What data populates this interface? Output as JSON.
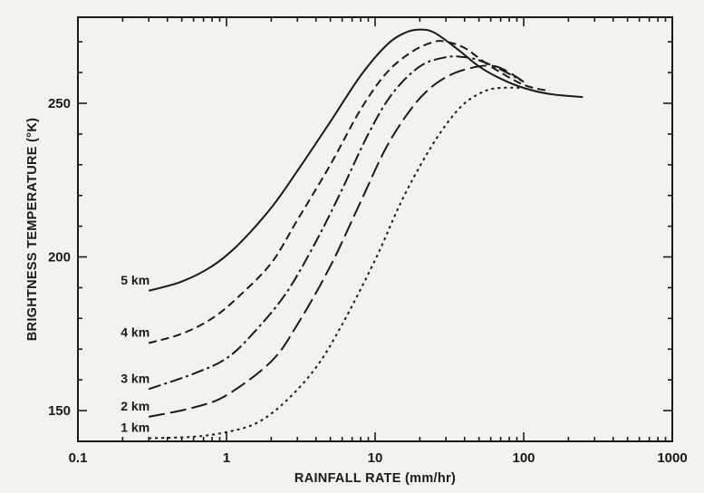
{
  "chart_data": {
    "type": "line",
    "xlabel": "RAINFALL RATE (mm/hr)",
    "ylabel": "BRIGHTNESS TEMPERATURE (°K)",
    "x_scale": "log",
    "xlim": [
      0.1,
      1000
    ],
    "ylim": [
      140,
      278
    ],
    "x_ticks": [
      0.1,
      1,
      10,
      100,
      1000
    ],
    "x_tick_labels": [
      "0.1",
      "1",
      "10",
      "100",
      "1000"
    ],
    "y_ticks": [
      150,
      200,
      250
    ],
    "y_tick_labels": [
      "150",
      "200",
      "250"
    ],
    "grid": false,
    "series": [
      {
        "name": "5 km",
        "dash": "solid",
        "x": [
          0.3,
          0.5,
          0.8,
          1.2,
          2,
          3,
          5,
          8,
          12,
          16,
          20,
          25,
          35,
          50,
          70,
          100,
          150,
          250
        ],
        "y": [
          189,
          192,
          197,
          204,
          216,
          228,
          244,
          259,
          269,
          273,
          274,
          273,
          268,
          262,
          258,
          255,
          253,
          252
        ]
      },
      {
        "name": "4 km",
        "dash": "9,5",
        "x": [
          0.3,
          0.5,
          0.8,
          1.2,
          2,
          3,
          5,
          8,
          12,
          18,
          25,
          30,
          40,
          60,
          100,
          150
        ],
        "y": [
          172,
          175,
          180,
          187,
          198,
          212,
          230,
          248,
          260,
          267,
          270,
          270,
          268,
          262,
          256,
          254
        ]
      },
      {
        "name": "3 km",
        "dash": "14,4,3,4",
        "x": [
          0.3,
          0.6,
          1,
          1.5,
          2.5,
          4,
          6,
          9,
          13,
          20,
          30,
          40,
          50,
          70,
          100
        ],
        "y": [
          157,
          162,
          167,
          175,
          188,
          205,
          222,
          240,
          253,
          262,
          265,
          265,
          264,
          261,
          257
        ]
      },
      {
        "name": "2 km",
        "dash": "18,6",
        "x": [
          0.3,
          0.6,
          1,
          2,
          3,
          5,
          8,
          12,
          18,
          25,
          35,
          50,
          65,
          80,
          100
        ],
        "y": [
          148,
          151,
          155,
          166,
          178,
          197,
          218,
          236,
          249,
          256,
          260,
          262,
          262,
          260,
          257
        ]
      },
      {
        "name": "1 km",
        "dash": "3,4",
        "x": [
          0.3,
          0.6,
          1,
          1.6,
          2.5,
          4,
          6,
          10,
          15,
          22,
          30,
          40,
          55,
          70,
          100
        ],
        "y": [
          141,
          141.5,
          143,
          146,
          153,
          164,
          178,
          199,
          218,
          233,
          243,
          250,
          254,
          255,
          255
        ]
      }
    ]
  }
}
